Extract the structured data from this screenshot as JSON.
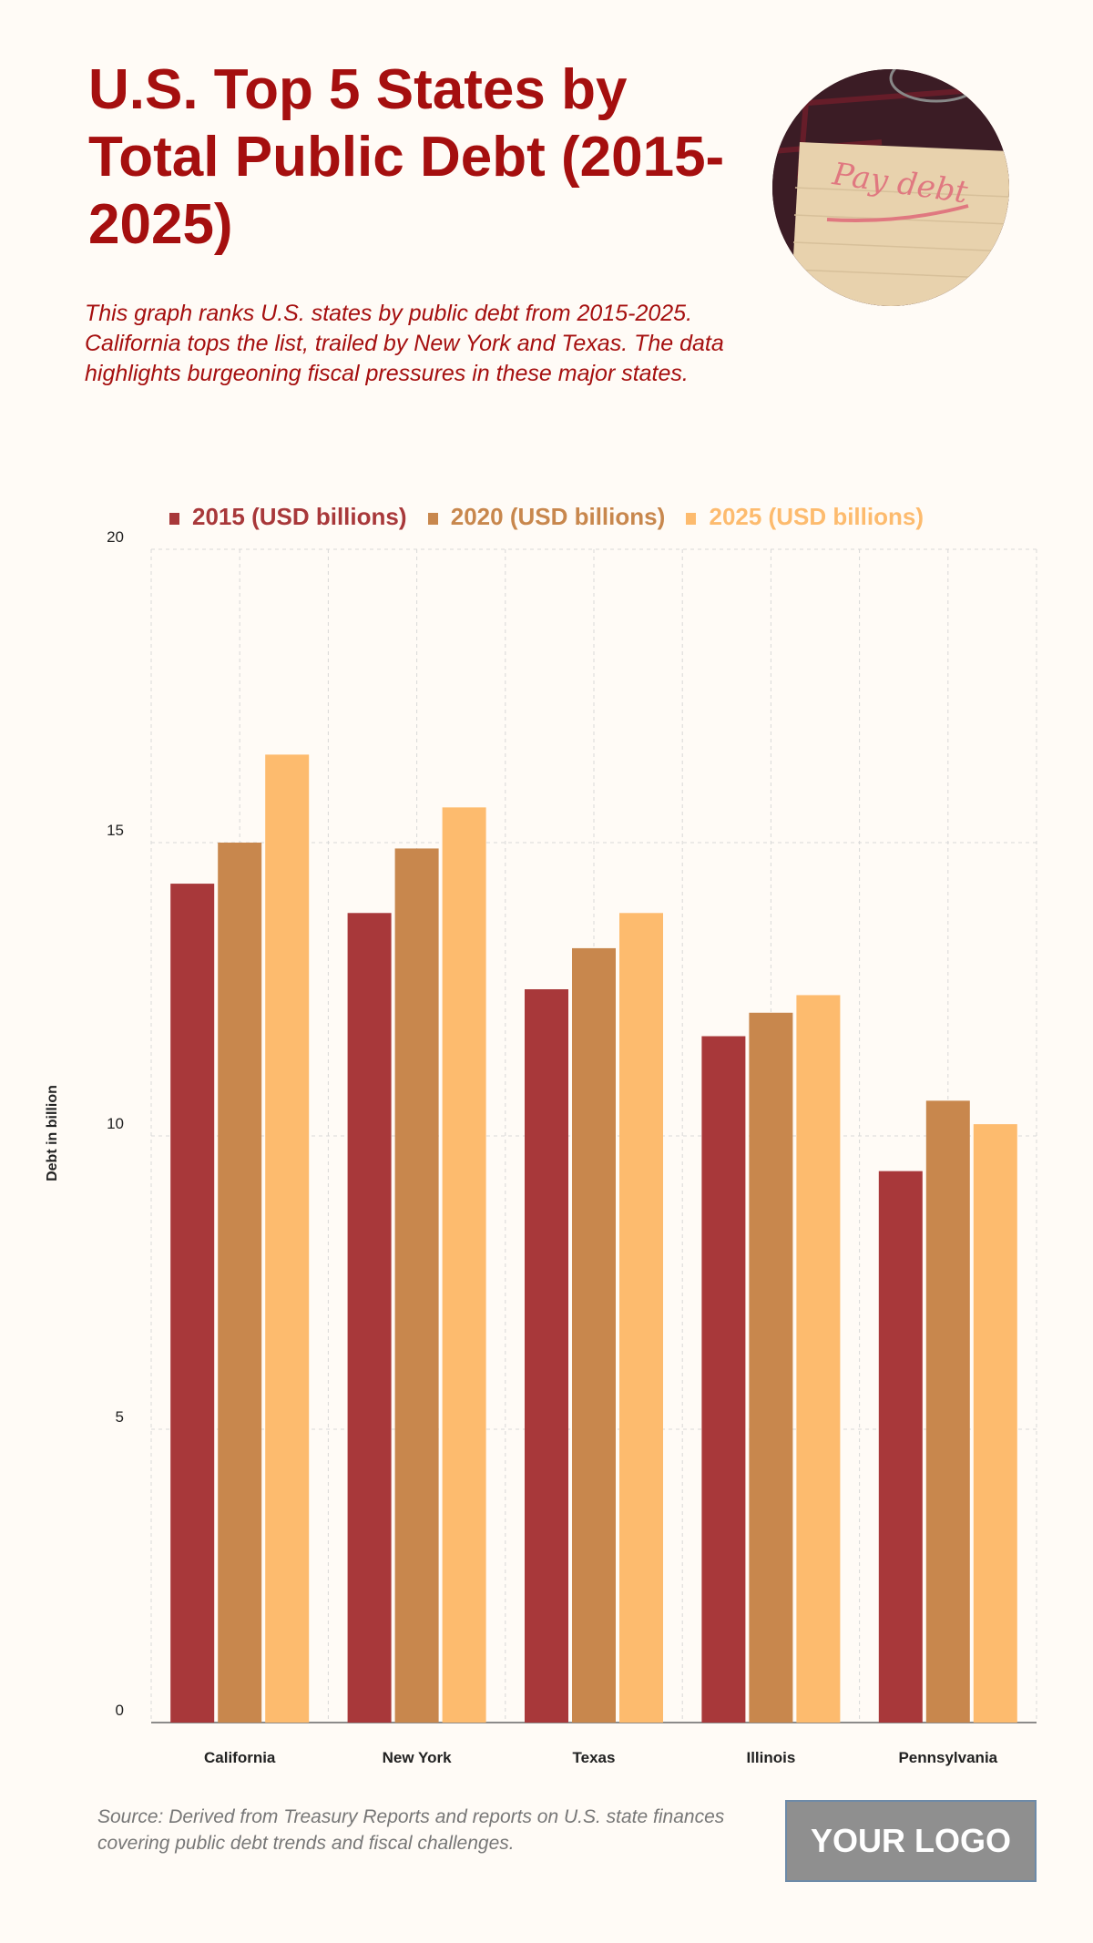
{
  "header": {
    "title": "U.S. Top 5 States by Total Public Debt (2015-2025)",
    "description": "This graph ranks U.S. states by public debt from 2015-2025. California tops the list, trailed by New York and Texas. The data highlights burgeoning fiscal pressures in these major states.",
    "photo_text": "Pay debt"
  },
  "footer": {
    "source": "Source: Derived from Treasury Reports and reports on U.S. state finances covering public debt trends and fiscal challenges.",
    "logo": "YOUR LOGO"
  },
  "chart_data": {
    "type": "bar",
    "title": "U.S. Top 5 States by Total Public Debt (2015-2025)",
    "xlabel": "",
    "ylabel": "Debt in billion",
    "ylim": [
      0,
      20
    ],
    "yticks": [
      0,
      5,
      10,
      15,
      20
    ],
    "grid": true,
    "legend_position": "top-center",
    "categories": [
      "California",
      "New York",
      "Texas",
      "Illinois",
      "Pennsylvania"
    ],
    "series": [
      {
        "name": "2015 (USD billions)",
        "color": "#a8383a",
        "values": [
          14.3,
          13.8,
          12.5,
          11.7,
          9.4
        ]
      },
      {
        "name": "2020 (USD billions)",
        "color": "#c8874d",
        "values": [
          15.0,
          14.9,
          13.2,
          12.1,
          10.6
        ]
      },
      {
        "name": "2025 (USD billions)",
        "color": "#fdbb6e",
        "values": [
          16.5,
          15.6,
          13.8,
          12.4,
          10.2
        ]
      }
    ]
  }
}
